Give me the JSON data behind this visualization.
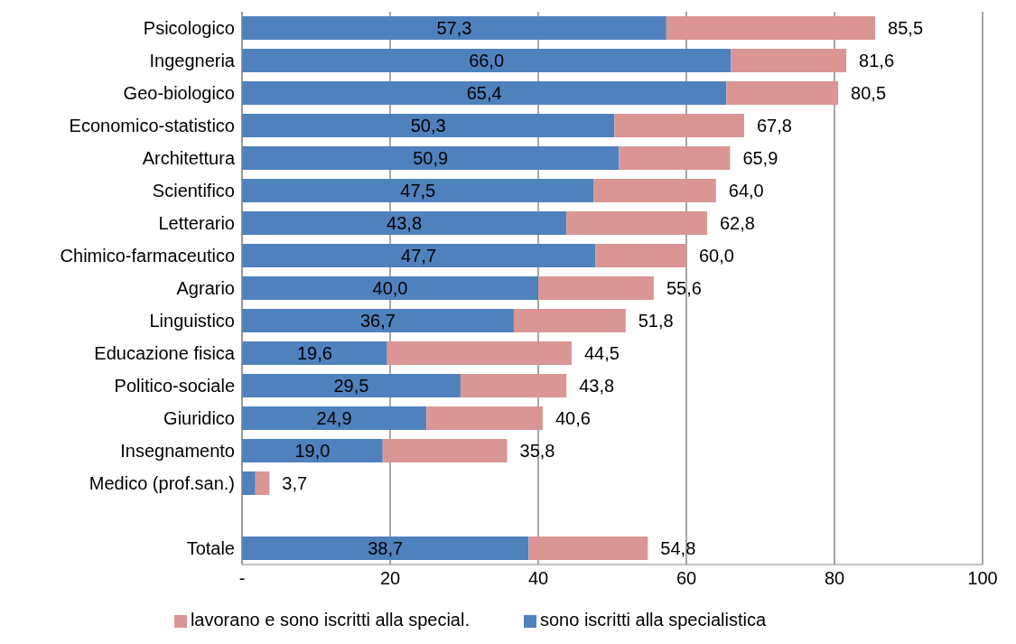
{
  "chart_data": {
    "type": "bar",
    "orientation": "horizontal",
    "stacked": true,
    "categories": [
      "Psicologico",
      "Ingegneria",
      "Geo-biologico",
      "Economico-statistico",
      "Architettura",
      "Scientifico",
      "Letterario",
      "Chimico-farmaceutico",
      "Agrario",
      "Linguistico",
      "Educazione fisica",
      "Politico-sociale",
      "Giuridico",
      "Insegnamento",
      "Medico (prof.san.)",
      null,
      "Totale"
    ],
    "series": [
      {
        "name": "sono iscritti alla specialistica",
        "color": "#4f81bd",
        "values": [
          57.3,
          66.0,
          65.4,
          50.3,
          50.9,
          47.5,
          43.8,
          47.7,
          40.0,
          36.7,
          19.6,
          29.5,
          24.9,
          19.0,
          1.8,
          null,
          38.7
        ],
        "value_labels": [
          "57,3",
          "66,0",
          "65,4",
          "50,3",
          "50,9",
          "47,5",
          "43,8",
          "47,7",
          "40,0",
          "36,7",
          "19,6",
          "29,5",
          "24,9",
          "19,0",
          null,
          null,
          "38,7"
        ]
      },
      {
        "name": "lavorano e sono iscritti alla special.",
        "color": "#d99694",
        "values": [
          28.2,
          15.6,
          15.1,
          17.5,
          15.0,
          16.5,
          19.0,
          12.3,
          15.6,
          15.1,
          24.9,
          14.3,
          15.7,
          16.8,
          1.9,
          null,
          16.1
        ]
      }
    ],
    "totals": [
      "85,5",
      "81,6",
      "80,5",
      "67,8",
      "65,9",
      "64,0",
      "62,8",
      "60,0",
      "55,6",
      "51,8",
      "44,5",
      "43,8",
      "40,6",
      "35,8",
      "3,7",
      null,
      "54,8"
    ],
    "xlim": [
      0,
      100
    ],
    "xticks": [
      {
        "value": 0,
        "label": "-"
      },
      20,
      40,
      60,
      80,
      100
    ],
    "grid": "x",
    "legend": "bottom"
  }
}
